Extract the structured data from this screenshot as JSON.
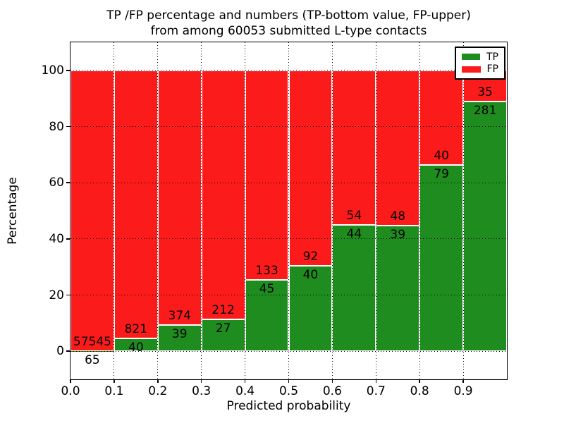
{
  "chart_data": {
    "type": "bar",
    "stacked": true,
    "normalized_to_percent": true,
    "title_line1": "TP /FP percentage and numbers (TP-bottom value, FP-upper)",
    "title_line2": "from among 60053 submitted L-type contacts",
    "xlabel": "Predicted probability",
    "ylabel": "Percentage",
    "xlim": [
      0.0,
      1.0
    ],
    "ylim": [
      -10,
      110
    ],
    "x_tick_labels": [
      "0.0",
      "0.1",
      "0.2",
      "0.3",
      "0.4",
      "0.5",
      "0.6",
      "0.7",
      "0.8",
      "0.9"
    ],
    "y_tick_labels": [
      "0",
      "20",
      "40",
      "60",
      "80",
      "100"
    ],
    "y_tick_values": [
      0,
      20,
      40,
      60,
      80,
      100
    ],
    "bin_width": 0.1,
    "bin_starts": [
      0.0,
      0.1,
      0.2,
      0.3,
      0.4,
      0.5,
      0.6,
      0.7,
      0.8,
      0.9
    ],
    "series": [
      {
        "name": "TP",
        "position": "bottom",
        "color": "#1f8c1f",
        "counts": [
          65,
          40,
          39,
          27,
          45,
          40,
          44,
          39,
          79,
          281
        ]
      },
      {
        "name": "FP",
        "position": "top",
        "color": "#fc1b1b",
        "counts": [
          57545,
          821,
          374,
          212,
          133,
          92,
          54,
          48,
          40,
          35
        ]
      }
    ],
    "tp_percent": [
      0.11,
      4.65,
      9.44,
      11.3,
      25.28,
      30.3,
      44.9,
      44.83,
      66.39,
      88.92
    ],
    "bar_edge_color": "#ffffff",
    "grid": {
      "style": "dotted",
      "color": "#000000"
    },
    "legend": {
      "position": "upper right",
      "entries": [
        "TP",
        "FP"
      ]
    }
  }
}
